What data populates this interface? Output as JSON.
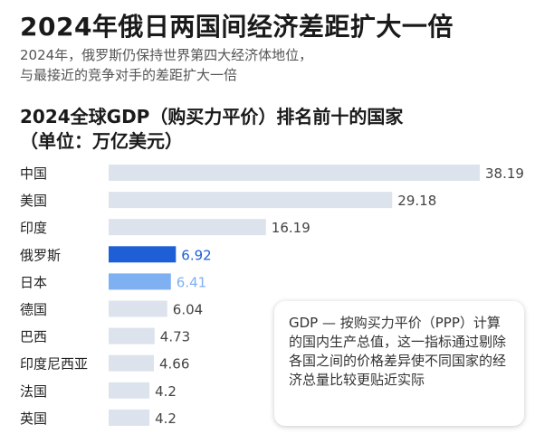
{
  "headline": "2024年俄日两国间经济差距扩大一倍",
  "subhead": {
    "line1": "2024年，俄罗斯仍保持世界第四大经济体地位，",
    "line2": "与最接近的竞争对手的差距扩大一倍"
  },
  "chart_data": {
    "type": "bar",
    "orientation": "horizontal",
    "title_line1": "2024全球GDP（购买力平价）排名前十的国家",
    "title_line2": "（单位：万亿美元）",
    "xlim": [
      0,
      38.19
    ],
    "grid": false,
    "categories": [
      "中国",
      "美国",
      "印度",
      "俄罗斯",
      "日本",
      "德国",
      "巴西",
      "印度尼西亚",
      "法国",
      "英国"
    ],
    "values": [
      38.19,
      29.18,
      16.19,
      6.92,
      6.41,
      6.04,
      4.73,
      4.66,
      4.2,
      4.2
    ],
    "value_labels": [
      "38.19",
      "29.18",
      "16.19",
      "6.92",
      "6.41",
      "6.04",
      "4.73",
      "4.66",
      "4.2",
      "4.2"
    ],
    "colors": {
      "default_bar": "#dde3ec",
      "default_label": "#444444",
      "highlight_russia": "#1f5fd6",
      "highlight_japan": "#7fb0f2"
    },
    "highlights": {
      "俄罗斯": "highlight_russia",
      "日本": "highlight_japan"
    }
  },
  "note": {
    "text": "GDP — 按购买力平价（PPP）计算的国内生产总值，这一指标通过剔除各国之间的价格差异使不同国家的经济总量比较更贴近实际"
  }
}
